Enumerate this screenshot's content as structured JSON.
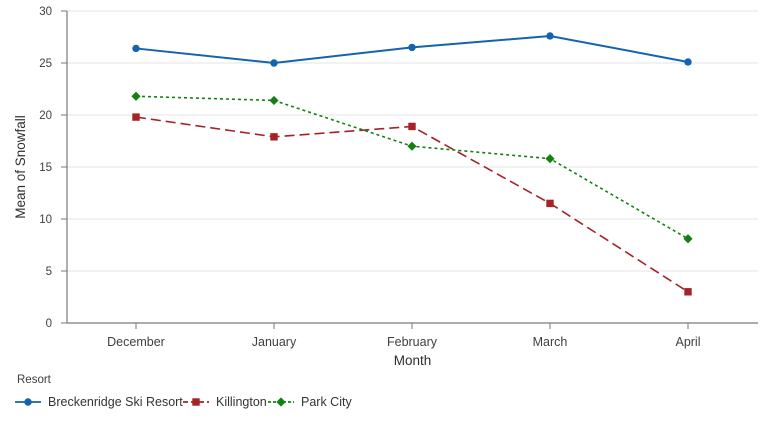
{
  "chart_data": {
    "type": "line",
    "categories": [
      "December",
      "January",
      "February",
      "March",
      "April"
    ],
    "series": [
      {
        "name": "Breckenridge Ski Resort",
        "values": [
          26.4,
          25.0,
          26.5,
          27.6,
          25.1
        ],
        "color": "#1563AE",
        "marker": "circle",
        "dash": "solid"
      },
      {
        "name": "Killington",
        "values": [
          19.8,
          17.9,
          18.9,
          11.5,
          3.0
        ],
        "color": "#A52228",
        "marker": "square",
        "dash": "long-dash"
      },
      {
        "name": "Park City",
        "values": [
          21.8,
          21.4,
          17.0,
          15.8,
          8.1
        ],
        "color": "#148014",
        "marker": "diamond",
        "dash": "short-dash"
      }
    ],
    "title": "",
    "xlabel": "Month",
    "ylabel": "Mean of Snowfall",
    "ylim": [
      0,
      30
    ],
    "yticks": [
      0,
      5,
      10,
      15,
      20,
      25,
      30
    ],
    "grid": "horizontal",
    "legend_title": "Resort",
    "legend_position": "bottom-left"
  },
  "colors": {
    "background": "#ffffff",
    "gridline": "#e6e6e6",
    "axis_line": "#7a7a7a",
    "tick_label": "#3f3f3f",
    "axis_title": "#2e2e2e",
    "legend_text": "#343434"
  }
}
